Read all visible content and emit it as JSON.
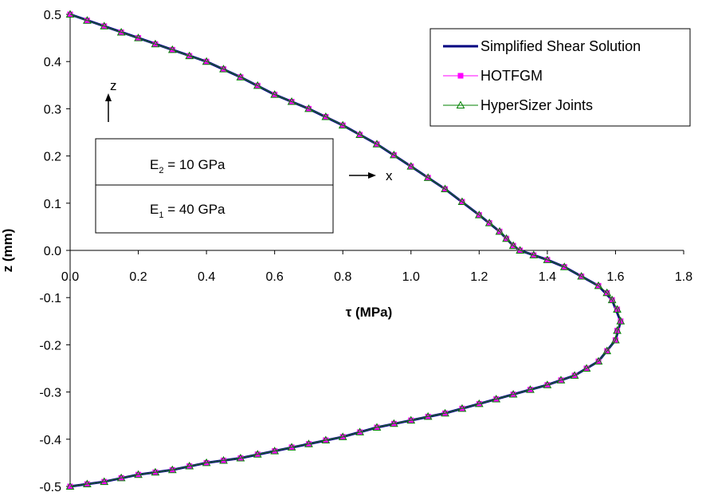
{
  "chart_data": {
    "type": "line",
    "title": "",
    "xlabel": "τ (MPa)",
    "ylabel": "z (mm)",
    "xlim": [
      0.0,
      1.8
    ],
    "ylim": [
      -0.5,
      0.5
    ],
    "x_ticks": [
      "0.0",
      "0.2",
      "0.4",
      "0.6",
      "0.8",
      "1.0",
      "1.2",
      "1.4",
      "1.6",
      "1.8"
    ],
    "y_ticks": [
      "0.5",
      "0.4",
      "0.3",
      "0.2",
      "0.1",
      "0.0",
      "-0.1",
      "-0.2",
      "-0.3",
      "-0.4",
      "-0.5"
    ],
    "grid": false,
    "legend_position": "top-right",
    "series": [
      {
        "name": "Simplified Shear Solution",
        "color": "#000080",
        "marker": "none",
        "points": [
          [
            0,
            0.5
          ],
          [
            0.1,
            0.475
          ],
          [
            0.2,
            0.45
          ],
          [
            0.3,
            0.425
          ],
          [
            0.4,
            0.4
          ],
          [
            0.5,
            0.367
          ],
          [
            0.6,
            0.33
          ],
          [
            0.7,
            0.3
          ],
          [
            0.8,
            0.265
          ],
          [
            0.9,
            0.225
          ],
          [
            1.0,
            0.178
          ],
          [
            1.1,
            0.13
          ],
          [
            1.2,
            0.075
          ],
          [
            1.26,
            0.04
          ],
          [
            1.3,
            0.01
          ],
          [
            1.32,
            0.0
          ],
          [
            1.4,
            -0.02
          ],
          [
            1.45,
            -0.035
          ],
          [
            1.5,
            -0.055
          ],
          [
            1.55,
            -0.075
          ],
          [
            1.59,
            -0.105
          ],
          [
            1.615,
            -0.15
          ],
          [
            1.6,
            -0.19
          ],
          [
            1.55,
            -0.235
          ],
          [
            1.48,
            -0.265
          ],
          [
            1.4,
            -0.285
          ],
          [
            1.3,
            -0.305
          ],
          [
            1.2,
            -0.325
          ],
          [
            1.1,
            -0.345
          ],
          [
            1.0,
            -0.36
          ],
          [
            0.9,
            -0.375
          ],
          [
            0.8,
            -0.395
          ],
          [
            0.7,
            -0.41
          ],
          [
            0.6,
            -0.425
          ],
          [
            0.5,
            -0.44
          ],
          [
            0.4,
            -0.45
          ],
          [
            0.3,
            -0.465
          ],
          [
            0.2,
            -0.475
          ],
          [
            0.1,
            -0.49
          ],
          [
            0,
            -0.5
          ]
        ]
      },
      {
        "name": "HOTFGM",
        "color": "#ff00ff",
        "marker": "square",
        "points": [
          [
            0,
            0.5
          ],
          [
            0.05,
            0.487
          ],
          [
            0.1,
            0.475
          ],
          [
            0.15,
            0.462
          ],
          [
            0.2,
            0.45
          ],
          [
            0.25,
            0.437
          ],
          [
            0.3,
            0.425
          ],
          [
            0.35,
            0.412
          ],
          [
            0.4,
            0.4
          ],
          [
            0.45,
            0.384
          ],
          [
            0.5,
            0.367
          ],
          [
            0.55,
            0.349
          ],
          [
            0.6,
            0.33
          ],
          [
            0.65,
            0.315
          ],
          [
            0.7,
            0.3
          ],
          [
            0.75,
            0.283
          ],
          [
            0.8,
            0.265
          ],
          [
            0.85,
            0.245
          ],
          [
            0.9,
            0.225
          ],
          [
            0.95,
            0.202
          ],
          [
            1.0,
            0.178
          ],
          [
            1.05,
            0.154
          ],
          [
            1.1,
            0.13
          ],
          [
            1.15,
            0.103
          ],
          [
            1.2,
            0.075
          ],
          [
            1.23,
            0.058
          ],
          [
            1.26,
            0.04
          ],
          [
            1.28,
            0.025
          ],
          [
            1.3,
            0.01
          ],
          [
            1.32,
            0.0
          ],
          [
            1.36,
            -0.01
          ],
          [
            1.4,
            -0.02
          ],
          [
            1.45,
            -0.035
          ],
          [
            1.5,
            -0.055
          ],
          [
            1.55,
            -0.075
          ],
          [
            1.575,
            -0.09
          ],
          [
            1.59,
            -0.105
          ],
          [
            1.605,
            -0.125
          ],
          [
            1.615,
            -0.15
          ],
          [
            1.605,
            -0.17
          ],
          [
            1.6,
            -0.19
          ],
          [
            1.575,
            -0.213
          ],
          [
            1.55,
            -0.235
          ],
          [
            1.515,
            -0.25
          ],
          [
            1.48,
            -0.265
          ],
          [
            1.44,
            -0.275
          ],
          [
            1.4,
            -0.285
          ],
          [
            1.35,
            -0.295
          ],
          [
            1.3,
            -0.305
          ],
          [
            1.25,
            -0.315
          ],
          [
            1.2,
            -0.325
          ],
          [
            1.15,
            -0.335
          ],
          [
            1.1,
            -0.345
          ],
          [
            1.05,
            -0.352
          ],
          [
            1.0,
            -0.36
          ],
          [
            0.95,
            -0.367
          ],
          [
            0.9,
            -0.375
          ],
          [
            0.85,
            -0.385
          ],
          [
            0.8,
            -0.395
          ],
          [
            0.75,
            -0.402
          ],
          [
            0.7,
            -0.41
          ],
          [
            0.65,
            -0.417
          ],
          [
            0.6,
            -0.425
          ],
          [
            0.55,
            -0.432
          ],
          [
            0.5,
            -0.44
          ],
          [
            0.45,
            -0.445
          ],
          [
            0.4,
            -0.45
          ],
          [
            0.35,
            -0.457
          ],
          [
            0.3,
            -0.465
          ],
          [
            0.25,
            -0.47
          ],
          [
            0.2,
            -0.475
          ],
          [
            0.15,
            -0.482
          ],
          [
            0.1,
            -0.49
          ],
          [
            0.05,
            -0.495
          ],
          [
            0,
            -0.5
          ]
        ]
      },
      {
        "name": "HyperSizer Joints",
        "color": "#008000",
        "marker": "triangle",
        "points": [
          [
            0,
            0.5
          ],
          [
            0.05,
            0.487
          ],
          [
            0.1,
            0.475
          ],
          [
            0.15,
            0.462
          ],
          [
            0.2,
            0.45
          ],
          [
            0.25,
            0.437
          ],
          [
            0.3,
            0.425
          ],
          [
            0.35,
            0.412
          ],
          [
            0.4,
            0.4
          ],
          [
            0.45,
            0.384
          ],
          [
            0.5,
            0.367
          ],
          [
            0.55,
            0.349
          ],
          [
            0.6,
            0.33
          ],
          [
            0.65,
            0.315
          ],
          [
            0.7,
            0.3
          ],
          [
            0.75,
            0.283
          ],
          [
            0.8,
            0.265
          ],
          [
            0.85,
            0.245
          ],
          [
            0.9,
            0.225
          ],
          [
            0.95,
            0.202
          ],
          [
            1.0,
            0.178
          ],
          [
            1.05,
            0.154
          ],
          [
            1.1,
            0.13
          ],
          [
            1.15,
            0.103
          ],
          [
            1.2,
            0.075
          ],
          [
            1.23,
            0.058
          ],
          [
            1.26,
            0.04
          ],
          [
            1.28,
            0.025
          ],
          [
            1.3,
            0.01
          ],
          [
            1.32,
            0.0
          ],
          [
            1.36,
            -0.01
          ],
          [
            1.4,
            -0.02
          ],
          [
            1.45,
            -0.035
          ],
          [
            1.5,
            -0.055
          ],
          [
            1.55,
            -0.075
          ],
          [
            1.575,
            -0.09
          ],
          [
            1.59,
            -0.105
          ],
          [
            1.605,
            -0.125
          ],
          [
            1.615,
            -0.15
          ],
          [
            1.605,
            -0.17
          ],
          [
            1.6,
            -0.19
          ],
          [
            1.575,
            -0.213
          ],
          [
            1.55,
            -0.235
          ],
          [
            1.515,
            -0.25
          ],
          [
            1.48,
            -0.265
          ],
          [
            1.44,
            -0.275
          ],
          [
            1.4,
            -0.285
          ],
          [
            1.35,
            -0.295
          ],
          [
            1.3,
            -0.305
          ],
          [
            1.25,
            -0.315
          ],
          [
            1.2,
            -0.325
          ],
          [
            1.15,
            -0.335
          ],
          [
            1.1,
            -0.345
          ],
          [
            1.05,
            -0.352
          ],
          [
            1.0,
            -0.36
          ],
          [
            0.95,
            -0.367
          ],
          [
            0.9,
            -0.375
          ],
          [
            0.85,
            -0.385
          ],
          [
            0.8,
            -0.395
          ],
          [
            0.75,
            -0.402
          ],
          [
            0.7,
            -0.41
          ],
          [
            0.65,
            -0.417
          ],
          [
            0.6,
            -0.425
          ],
          [
            0.55,
            -0.432
          ],
          [
            0.5,
            -0.44
          ],
          [
            0.45,
            -0.445
          ],
          [
            0.4,
            -0.45
          ],
          [
            0.35,
            -0.457
          ],
          [
            0.3,
            -0.465
          ],
          [
            0.25,
            -0.47
          ],
          [
            0.2,
            -0.475
          ],
          [
            0.15,
            -0.482
          ],
          [
            0.1,
            -0.49
          ],
          [
            0.05,
            -0.495
          ],
          [
            0,
            -0.5
          ]
        ]
      }
    ],
    "inset": {
      "z_label": "z",
      "x_label": "x",
      "layer_top_label": "E",
      "layer_top_sub": "2",
      "layer_top_value": " = 10 GPa",
      "layer_bottom_label": "E",
      "layer_bottom_sub": "1",
      "layer_bottom_value": " = 40 GPa"
    }
  }
}
